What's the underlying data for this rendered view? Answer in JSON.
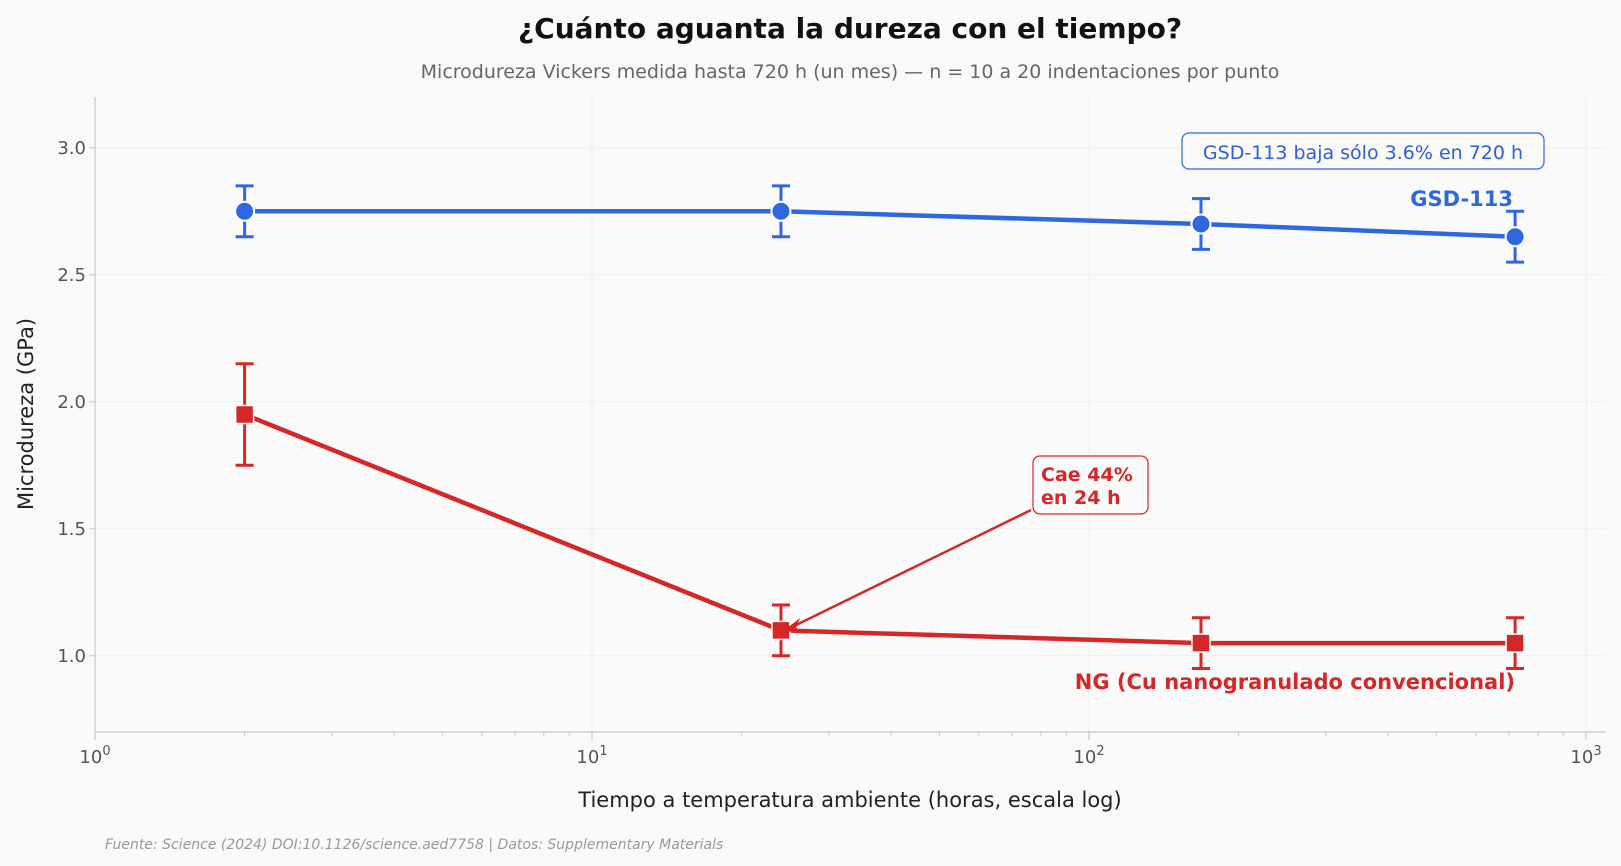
{
  "chart_data": {
    "type": "line",
    "title": "¿Cuánto aguanta la dureza con el tiempo?",
    "subtitle": "Microdureza Vickers medida hasta 720 h (un mes) — n = 10 a 20 indentaciones por punto",
    "xlabel": "Tiempo a temperatura ambiente (horas, escala log)",
    "ylabel": "Microdureza (GPa)",
    "x_scale": "log",
    "xlim": [
      1,
      1000
    ],
    "ylim": [
      0.7,
      3.2
    ],
    "x_ticks": [
      {
        "value": 1,
        "base": "10",
        "exp": "0"
      },
      {
        "value": 10,
        "base": "10",
        "exp": "1"
      },
      {
        "value": 100,
        "base": "10",
        "exp": "2"
      },
      {
        "value": 1000,
        "base": "10",
        "exp": "3"
      }
    ],
    "y_ticks": [
      {
        "value": 1.0,
        "label": "1.0"
      },
      {
        "value": 1.5,
        "label": "1.5"
      },
      {
        "value": 2.0,
        "label": "2.0"
      },
      {
        "value": 2.5,
        "label": "2.5"
      },
      {
        "value": 3.0,
        "label": "3.0"
      }
    ],
    "grid": true,
    "series": [
      {
        "name": "GSD-113",
        "color": "#2f67e0",
        "marker": "circle",
        "x": [
          2,
          24,
          168,
          720
        ],
        "y": [
          2.75,
          2.75,
          2.7,
          2.65
        ],
        "err": [
          0.1,
          0.1,
          0.1,
          0.1
        ]
      },
      {
        "name": "NG (Cu nanogranulado convencional)",
        "color": "#d62728",
        "marker": "square",
        "x": [
          2,
          24,
          168,
          720
        ],
        "y": [
          1.95,
          1.1,
          1.05,
          1.05
        ],
        "err": [
          0.2,
          0.1,
          0.1,
          0.1
        ]
      }
    ],
    "annotations": {
      "blue_note": "GSD-113 baja sólo 3.6% en 720 h",
      "red_note_line1": "Cae 44%",
      "red_note_line2": "en 24 h"
    },
    "source": "Fuente: Science (2024) DOI:10.1126/science.aed7758 | Datos: Supplementary Materials"
  }
}
